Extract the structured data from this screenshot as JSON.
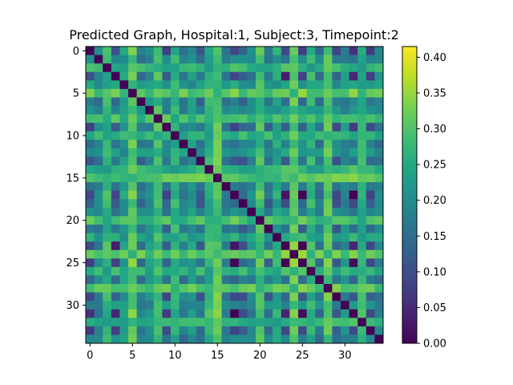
{
  "chart_data": {
    "type": "heatmap",
    "title": "Predicted Graph, Hospital:1, Subject:3, Timepoint:2",
    "xlabel": "",
    "ylabel": "",
    "size": 35,
    "x_ticks": [
      0,
      5,
      10,
      15,
      20,
      25,
      30
    ],
    "y_ticks": [
      0,
      5,
      10,
      15,
      20,
      25,
      30
    ],
    "x_tick_labels": [
      "0",
      "5",
      "10",
      "15",
      "20",
      "25",
      "30"
    ],
    "y_tick_labels": [
      "0",
      "5",
      "10",
      "15",
      "20",
      "25",
      "30"
    ],
    "colorbar": {
      "min": 0.0,
      "max": 0.415,
      "ticks": [
        0.0,
        0.05,
        0.1,
        0.15,
        0.2,
        0.25,
        0.3,
        0.35,
        0.4
      ],
      "tick_labels": [
        "0.00",
        "0.05",
        "0.10",
        "0.15",
        "0.20",
        "0.25",
        "0.30",
        "0.35",
        "0.40"
      ]
    },
    "colormap": "viridis",
    "node_profile": [
      0.12,
      0.22,
      0.3,
      0.1,
      0.26,
      0.34,
      0.2,
      0.24,
      0.32,
      0.14,
      0.3,
      0.22,
      0.26,
      0.18,
      0.3,
      0.34,
      0.2,
      0.06,
      0.16,
      0.22,
      0.32,
      0.18,
      0.28,
      0.04,
      0.34,
      0.02,
      0.3,
      0.2,
      0.34,
      0.16,
      0.24,
      0.06,
      0.3,
      0.12,
      0.22
    ],
    "values_note_matrix_rule": "value[i][j] = 0 when i == j; otherwise derived symmetrically from node_profile"
  }
}
